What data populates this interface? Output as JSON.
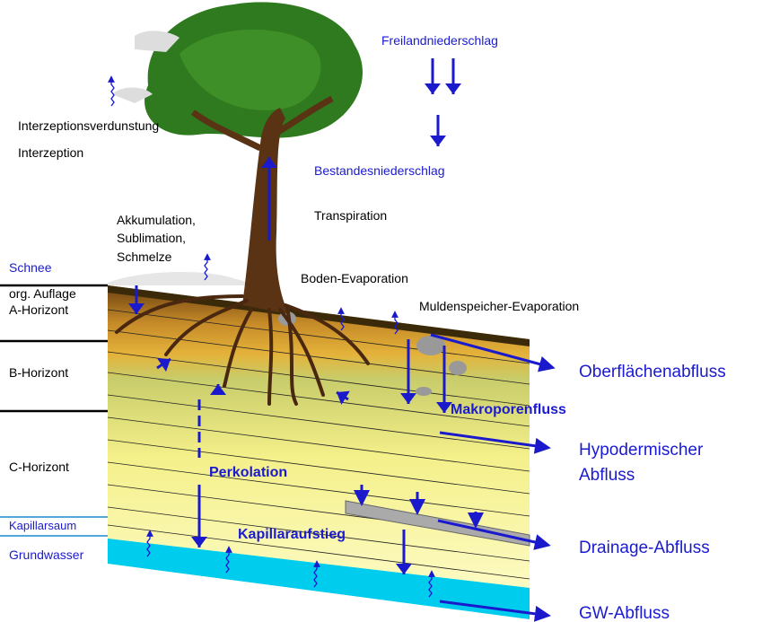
{
  "labels": {
    "freilandniederschlag": "Freilandniederschlag",
    "interzeptionsverdunstung": "Interzeptionsverdunstung",
    "interzeption": "Interzeption",
    "bestandesniederschlag": "Bestandesniederschlag",
    "akkumulation": [
      "Akkumulation,",
      "Sublimation,",
      "Schmelze"
    ],
    "transpiration": "Transpiration",
    "schnee": "Schnee",
    "org_auflage": "org. Auflage",
    "a_horizont": "A-Horizont",
    "boden_evaporation": "Boden-Evaporation",
    "muldenspeicher_evaporation": "Muldenspeicher-Evaporation",
    "b_horizont": "B-Horizont",
    "oberflaechenabfluss": "Oberflächenabfluss",
    "makroporenfluss": "Makroporenfluss",
    "c_horizont": "C-Horizont",
    "perkolation": "Perkolation",
    "hypodermischer_abfluss": [
      "Hypodermischer",
      "Abfluss"
    ],
    "kapillarsaum": "Kapillarsaum",
    "kapillaraufstieg": "Kapillaraufstieg",
    "grundwasser": "Grundwasser",
    "drainage_abfluss": "Drainage-Abfluss",
    "gw_abfluss": "GW-Abfluss"
  }
}
